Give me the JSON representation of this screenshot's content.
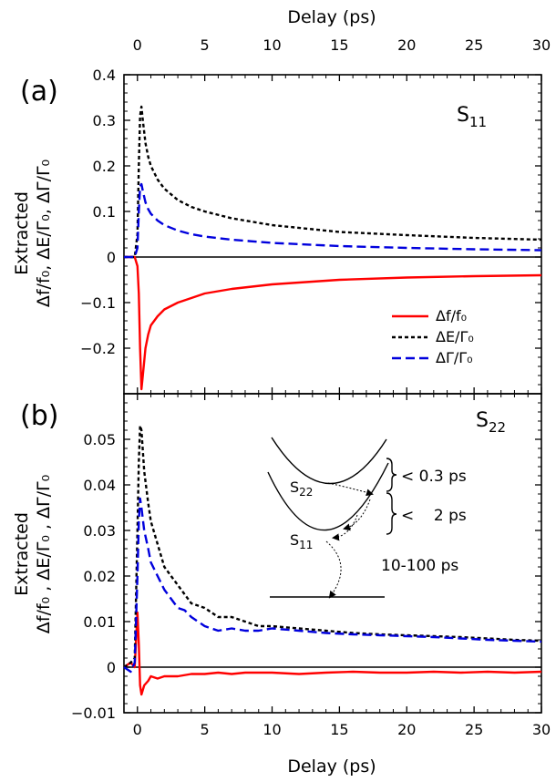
{
  "chart_data": [
    {
      "panel_label": "(a)",
      "annotation": {
        "main": "S",
        "sub": "11"
      },
      "type": "line",
      "xlabel_top": "Delay (ps)",
      "ylabel": {
        "line1": "Extracted",
        "line2": "Δf/f₀, ΔE/Γ₀, ΔΓ/Γ₀"
      },
      "xlim": [
        -1,
        30
      ],
      "ylim": [
        -0.3,
        0.4
      ],
      "xticks": [
        0,
        5,
        10,
        15,
        20,
        25,
        30
      ],
      "xtick_labels": [
        "0",
        "5",
        "10",
        "15",
        "20",
        "25",
        "30"
      ],
      "yticks": [
        -0.2,
        -0.1,
        0,
        0.1,
        0.2,
        0.3,
        0.4
      ],
      "ytick_labels": [
        "−0.2",
        "−0.1",
        "0",
        "0.1",
        "0.2",
        "0.3",
        "0.4"
      ],
      "legend_position": "center-right",
      "series": [
        {
          "name": "Δf/f₀",
          "color": "#ff0000",
          "dash": "solid",
          "x": [
            -1,
            -0.2,
            0,
            0.1,
            0.2,
            0.3,
            0.4,
            0.6,
            0.8,
            1,
            1.5,
            2,
            3,
            4,
            5,
            7,
            10,
            15,
            20,
            25,
            30
          ],
          "y": [
            0,
            0,
            -0.02,
            -0.08,
            -0.2,
            -0.29,
            -0.26,
            -0.2,
            -0.17,
            -0.15,
            -0.13,
            -0.115,
            -0.1,
            -0.09,
            -0.08,
            -0.07,
            -0.06,
            -0.05,
            -0.045,
            -0.042,
            -0.04
          ]
        },
        {
          "name": "ΔE/Γ₀",
          "color": "#000000",
          "dash": "short",
          "x": [
            -1,
            -0.2,
            0,
            0.1,
            0.2,
            0.3,
            0.4,
            0.6,
            0.8,
            1,
            1.5,
            2,
            3,
            4,
            5,
            7,
            10,
            15,
            20,
            25,
            30
          ],
          "y": [
            0,
            0,
            0.05,
            0.2,
            0.31,
            0.33,
            0.3,
            0.25,
            0.22,
            0.2,
            0.17,
            0.15,
            0.125,
            0.11,
            0.1,
            0.085,
            0.07,
            0.055,
            0.048,
            0.042,
            0.038
          ]
        },
        {
          "name": "ΔΓ/Γ₀",
          "color": "#0000dd",
          "dash": "long",
          "x": [
            -1,
            -0.2,
            0,
            0.1,
            0.2,
            0.3,
            0.4,
            0.6,
            0.8,
            1,
            1.5,
            2,
            3,
            4,
            5,
            7,
            10,
            15,
            20,
            25,
            30
          ],
          "y": [
            0,
            0,
            0.02,
            0.1,
            0.155,
            0.16,
            0.145,
            0.12,
            0.105,
            0.095,
            0.08,
            0.07,
            0.058,
            0.05,
            0.045,
            0.038,
            0.031,
            0.024,
            0.02,
            0.017,
            0.015
          ]
        }
      ]
    },
    {
      "panel_label": "(b)",
      "annotation": {
        "main": "S",
        "sub": "22"
      },
      "type": "line",
      "xlabel": "Delay (ps)",
      "ylabel": {
        "line1": "Extracted",
        "line2": "Δf/f₀ , ΔE/Γ₀ , ΔΓ/Γ₀"
      },
      "xlim": [
        -1,
        30
      ],
      "ylim": [
        -0.01,
        0.06
      ],
      "xticks": [
        0,
        5,
        10,
        15,
        20,
        25,
        30
      ],
      "xtick_labels": [
        "0",
        "5",
        "10",
        "15",
        "20",
        "25",
        "30"
      ],
      "yticks": [
        -0.01,
        0,
        0.01,
        0.02,
        0.03,
        0.04,
        0.05
      ],
      "ytick_labels": [
        "−0.01",
        "0",
        "0.01",
        "0.02",
        "0.03",
        "0.04",
        "0.05"
      ],
      "series": [
        {
          "name": "Δf/f₀",
          "color": "#ff0000",
          "dash": "solid",
          "x": [
            -1,
            -0.5,
            -0.2,
            0,
            0.1,
            0.2,
            0.3,
            0.5,
            0.8,
            1,
            1.5,
            2,
            3,
            4,
            5,
            6,
            7,
            8,
            10,
            12,
            14,
            16,
            18,
            20,
            22,
            24,
            26,
            28,
            30
          ],
          "y": [
            0,
            0.001,
            0,
            0.012,
            0.005,
            -0.004,
            -0.006,
            -0.004,
            -0.003,
            -0.002,
            -0.0025,
            -0.002,
            -0.002,
            -0.0015,
            -0.0015,
            -0.0012,
            -0.0015,
            -0.0012,
            -0.0012,
            -0.0015,
            -0.0012,
            -0.001,
            -0.0012,
            -0.0012,
            -0.001,
            -0.0012,
            -0.001,
            -0.0012,
            -0.001
          ]
        },
        {
          "name": "ΔE/Γ₀",
          "color": "#000000",
          "dash": "short",
          "x": [
            -1,
            -0.5,
            -0.2,
            0,
            0.1,
            0.2,
            0.3,
            0.5,
            0.8,
            1,
            1.5,
            2,
            2.5,
            3,
            3.5,
            4,
            5,
            6,
            7,
            8,
            9,
            10,
            12,
            14,
            16,
            18,
            20,
            22,
            24,
            26,
            28,
            30
          ],
          "y": [
            0,
            0.001,
            0.002,
            0.03,
            0.045,
            0.053,
            0.052,
            0.043,
            0.036,
            0.032,
            0.027,
            0.022,
            0.02,
            0.018,
            0.016,
            0.014,
            0.013,
            0.011,
            0.011,
            0.01,
            0.009,
            0.009,
            0.0085,
            0.008,
            0.0075,
            0.0072,
            0.007,
            0.0068,
            0.0066,
            0.0063,
            0.006,
            0.0058
          ]
        },
        {
          "name": "ΔΓ/Γ₀",
          "color": "#0000dd",
          "dash": "long",
          "x": [
            -1,
            -0.5,
            -0.2,
            0,
            0.1,
            0.2,
            0.3,
            0.5,
            0.8,
            1,
            1.5,
            2,
            2.5,
            3,
            3.5,
            4,
            5,
            6,
            7,
            8,
            9,
            10,
            12,
            14,
            16,
            18,
            20,
            22,
            24,
            26,
            28,
            30
          ],
          "y": [
            0,
            -0.001,
            0.001,
            0.02,
            0.032,
            0.037,
            0.035,
            0.03,
            0.026,
            0.023,
            0.02,
            0.017,
            0.015,
            0.013,
            0.0125,
            0.011,
            0.009,
            0.008,
            0.0085,
            0.008,
            0.008,
            0.0085,
            0.008,
            0.0075,
            0.0072,
            0.007,
            0.0068,
            0.0066,
            0.0063,
            0.006,
            0.0058,
            0.0056
          ]
        }
      ],
      "inset": {
        "levels": [
          {
            "main": "S",
            "sub": "22"
          },
          {
            "main": "S",
            "sub": "11"
          }
        ],
        "times": [
          "< 0.3 ps",
          "<    2 ps",
          "10-100 ps"
        ]
      }
    }
  ]
}
